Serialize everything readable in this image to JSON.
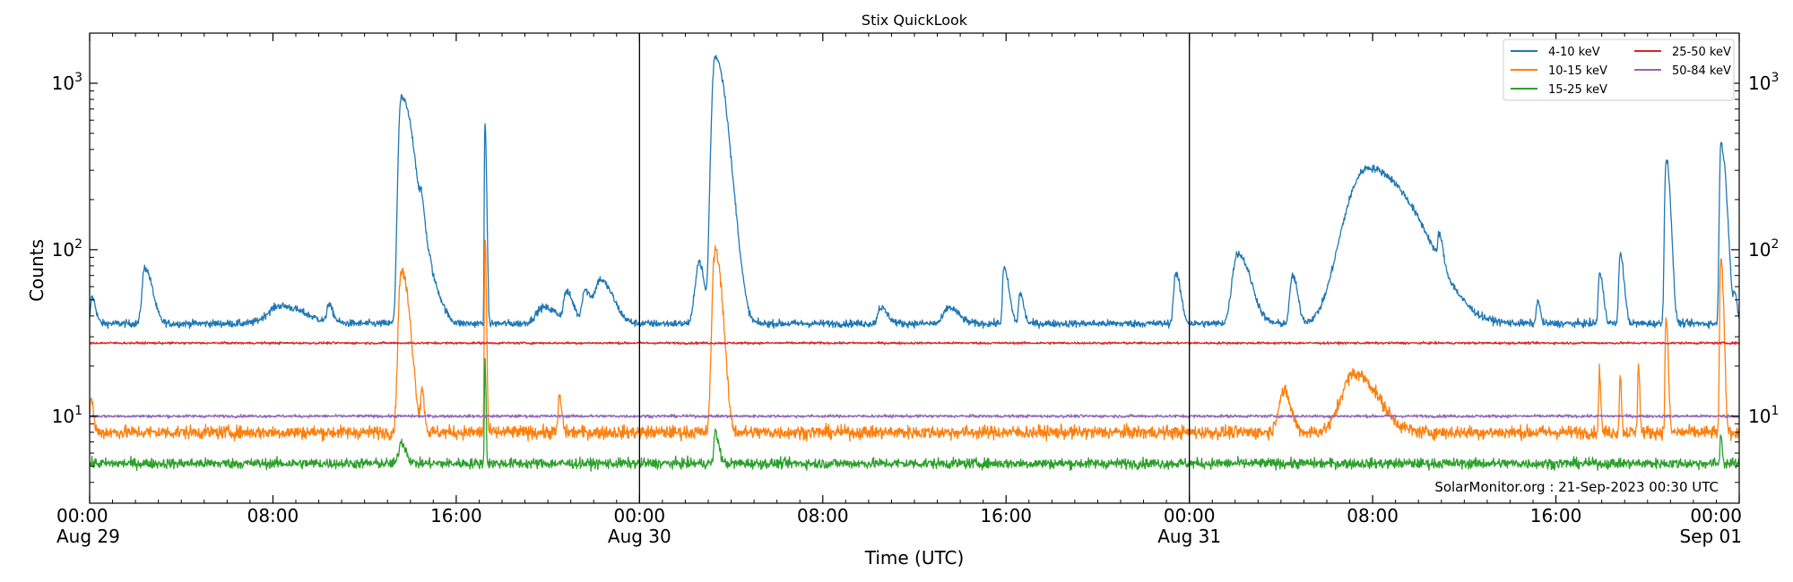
{
  "chart_data": {
    "type": "line",
    "title": "Stix QuickLook",
    "xlabel": "Time (UTC)",
    "ylabel": "Counts",
    "yscale": "log",
    "ylim": [
      3,
      2000
    ],
    "xlim_hours": [
      0,
      72
    ],
    "x_ticks": [
      {
        "hour": 0,
        "label": "00:00",
        "date": "Aug 29"
      },
      {
        "hour": 8,
        "label": "08:00",
        "date": ""
      },
      {
        "hour": 16,
        "label": "16:00",
        "date": ""
      },
      {
        "hour": 24,
        "label": "00:00",
        "date": "Aug 30"
      },
      {
        "hour": 32,
        "label": "08:00",
        "date": ""
      },
      {
        "hour": 40,
        "label": "16:00",
        "date": ""
      },
      {
        "hour": 48,
        "label": "00:00",
        "date": "Aug 31"
      },
      {
        "hour": 56,
        "label": "08:00",
        "date": ""
      },
      {
        "hour": 64,
        "label": "16:00",
        "date": ""
      },
      {
        "hour": 72,
        "label": "00:00",
        "date": "Sep 01"
      }
    ],
    "y_ticks": [
      {
        "value": 10,
        "base": "10",
        "exp": "1"
      },
      {
        "value": 100,
        "base": "10",
        "exp": "2"
      },
      {
        "value": 1000,
        "base": "10",
        "exp": "3"
      }
    ],
    "day_boundaries_hours": [
      24,
      48
    ],
    "legend_position": "top-right",
    "annotation": "SolarMonitor.org : 21-Sep-2023 00:30 UTC",
    "series": [
      {
        "name": "4-10 keV",
        "color": "#1f77b4",
        "baseline": 36,
        "noise": 0.05,
        "events": [
          {
            "t": 0.1,
            "peak": 52,
            "rise": 0.05,
            "decay": 0.15
          },
          {
            "t": 2.4,
            "peak": 78,
            "rise": 0.1,
            "decay": 0.3
          },
          {
            "t": 8.3,
            "peak": 46,
            "rise": 0.5,
            "decay": 1.0
          },
          {
            "t": 10.4,
            "peak": 46,
            "rise": 0.05,
            "decay": 0.2
          },
          {
            "t": 13.6,
            "peak": 820,
            "rise": 0.1,
            "decay": 0.45
          },
          {
            "t": 14.5,
            "peak": 110,
            "rise": 0.08,
            "decay": 0.2
          },
          {
            "t": 14.9,
            "peak": 62,
            "rise": 0.1,
            "decay": 0.4
          },
          {
            "t": 17.25,
            "peak": 550,
            "rise": 0.02,
            "decay": 0.06
          },
          {
            "t": 19.8,
            "peak": 45,
            "rise": 0.3,
            "decay": 0.6
          },
          {
            "t": 20.8,
            "peak": 54,
            "rise": 0.1,
            "decay": 0.3
          },
          {
            "t": 21.6,
            "peak": 57,
            "rise": 0.1,
            "decay": 0.3
          },
          {
            "t": 22.3,
            "peak": 65,
            "rise": 0.2,
            "decay": 0.5
          },
          {
            "t": 26.6,
            "peak": 85,
            "rise": 0.15,
            "decay": 0.2
          },
          {
            "t": 27.3,
            "peak": 1450,
            "rise": 0.12,
            "decay": 0.4
          },
          {
            "t": 28.2,
            "peak": 70,
            "rise": 0.1,
            "decay": 0.3
          },
          {
            "t": 34.5,
            "peak": 45,
            "rise": 0.1,
            "decay": 0.3
          },
          {
            "t": 37.5,
            "peak": 45,
            "rise": 0.2,
            "decay": 0.4
          },
          {
            "t": 39.9,
            "peak": 77,
            "rise": 0.05,
            "decay": 0.2
          },
          {
            "t": 40.6,
            "peak": 55,
            "rise": 0.05,
            "decay": 0.15
          },
          {
            "t": 47.4,
            "peak": 72,
            "rise": 0.08,
            "decay": 0.2
          },
          {
            "t": 50.1,
            "peak": 95,
            "rise": 0.2,
            "decay": 0.5
          },
          {
            "t": 52.5,
            "peak": 70,
            "rise": 0.1,
            "decay": 0.2
          },
          {
            "t": 55.8,
            "peak": 310,
            "rise": 0.8,
            "decay": 1.7
          },
          {
            "t": 58.9,
            "peak": 75,
            "rise": 0.05,
            "decay": 0.15
          },
          {
            "t": 63.2,
            "peak": 50,
            "rise": 0.05,
            "decay": 0.1
          },
          {
            "t": 65.9,
            "peak": 72,
            "rise": 0.05,
            "decay": 0.15
          },
          {
            "t": 66.8,
            "peak": 95,
            "rise": 0.05,
            "decay": 0.15
          },
          {
            "t": 68.8,
            "peak": 325,
            "rise": 0.05,
            "decay": 0.15
          },
          {
            "t": 68.9,
            "peak": 82,
            "rise": 0.05,
            "decay": 0.15
          },
          {
            "t": 71.2,
            "peak": 430,
            "rise": 0.05,
            "decay": 0.2
          },
          {
            "t": 71.8,
            "peak": 52,
            "rise": 0.05,
            "decay": 0.1
          }
        ]
      },
      {
        "name": "10-15 keV",
        "color": "#ff7f0e",
        "baseline": 8,
        "noise": 0.09,
        "events": [
          {
            "t": 0.05,
            "peak": 13,
            "rise": 0.05,
            "decay": 0.1
          },
          {
            "t": 13.6,
            "peak": 75,
            "rise": 0.1,
            "decay": 0.3
          },
          {
            "t": 14.5,
            "peak": 14,
            "rise": 0.05,
            "decay": 0.1
          },
          {
            "t": 17.25,
            "peak": 120,
            "rise": 0.02,
            "decay": 0.05
          },
          {
            "t": 20.5,
            "peak": 13,
            "rise": 0.05,
            "decay": 0.1
          },
          {
            "t": 27.3,
            "peak": 100,
            "rise": 0.1,
            "decay": 0.25
          },
          {
            "t": 52.1,
            "peak": 14,
            "rise": 0.2,
            "decay": 0.3
          },
          {
            "t": 55.2,
            "peak": 18,
            "rise": 0.5,
            "decay": 0.9
          },
          {
            "t": 65.9,
            "peak": 19,
            "rise": 0.03,
            "decay": 0.05
          },
          {
            "t": 66.8,
            "peak": 18,
            "rise": 0.03,
            "decay": 0.05
          },
          {
            "t": 67.6,
            "peak": 21,
            "rise": 0.03,
            "decay": 0.05
          },
          {
            "t": 68.8,
            "peak": 40,
            "rise": 0.03,
            "decay": 0.08
          },
          {
            "t": 71.2,
            "peak": 85,
            "rise": 0.04,
            "decay": 0.1
          }
        ]
      },
      {
        "name": "15-25 keV",
        "color": "#2ca02c",
        "baseline": 5.2,
        "noise": 0.07,
        "events": [
          {
            "t": 13.6,
            "peak": 7,
            "rise": 0.1,
            "decay": 0.2
          },
          {
            "t": 17.25,
            "peak": 22,
            "rise": 0.02,
            "decay": 0.04
          },
          {
            "t": 27.3,
            "peak": 8,
            "rise": 0.05,
            "decay": 0.15
          },
          {
            "t": 71.2,
            "peak": 8,
            "rise": 0.03,
            "decay": 0.05
          }
        ]
      },
      {
        "name": "25-50 keV",
        "color": "#d62728",
        "baseline": 27.5,
        "noise": 0.015,
        "events": []
      },
      {
        "name": "50-84 keV",
        "color": "#9467bd",
        "baseline": 10,
        "noise": 0.02,
        "events": []
      }
    ]
  }
}
